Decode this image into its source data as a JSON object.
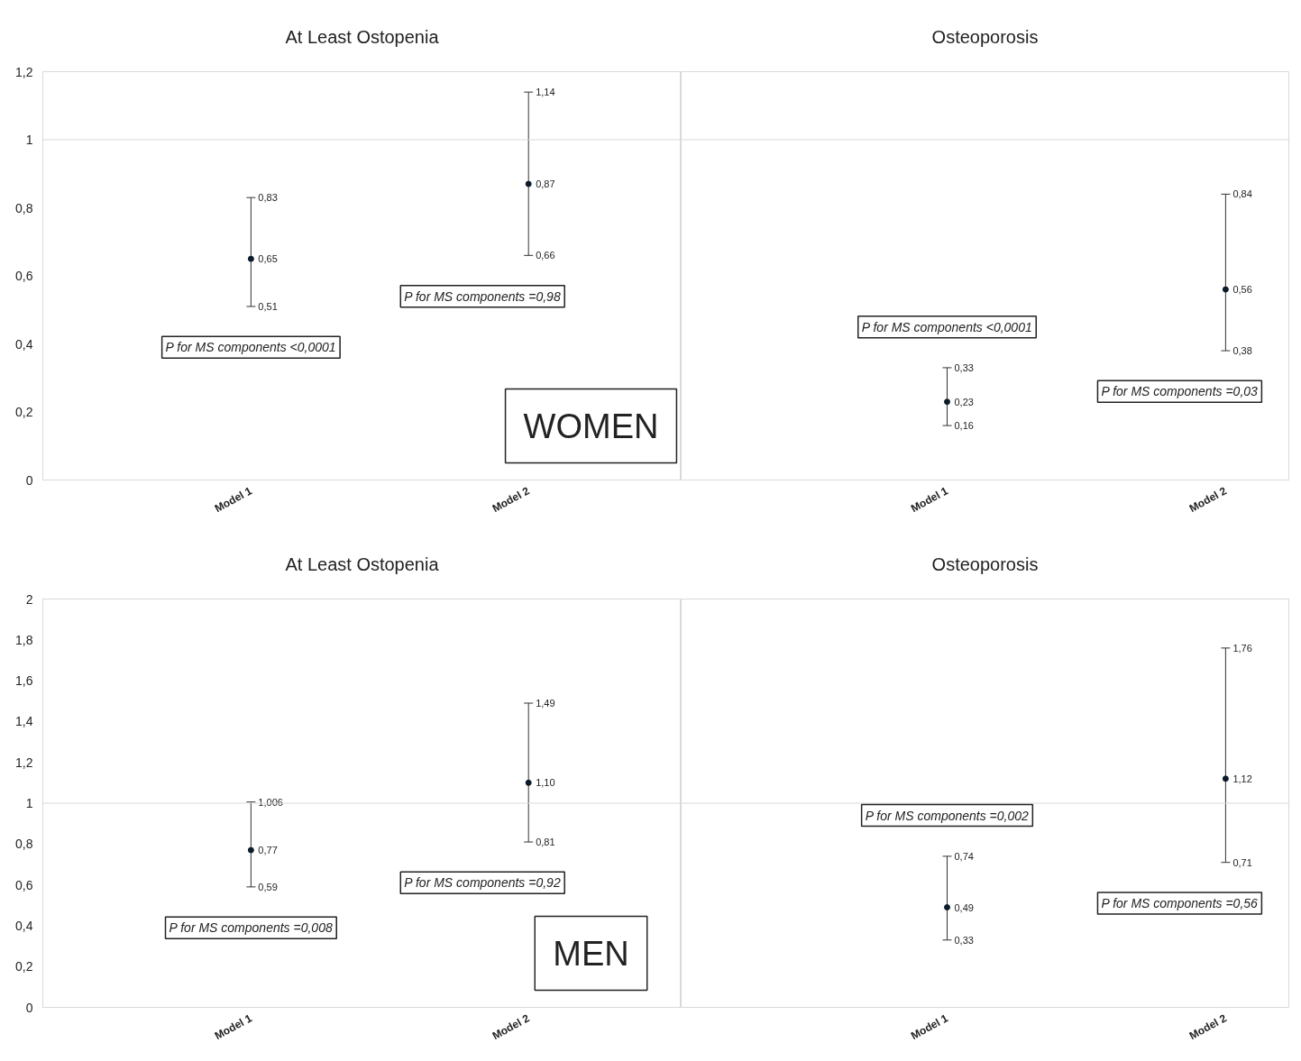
{
  "chart_data": [
    {
      "type": "scatter",
      "marker": "circle",
      "title": "At Least Ostopenia",
      "subtitle": "WOMEN",
      "categories": [
        "Model 1",
        "Model 2"
      ],
      "ylim": [
        0,
        1.2
      ],
      "yticks": [
        {
          "value": 0,
          "label": "0"
        },
        {
          "value": 0.2,
          "label": "0,2"
        },
        {
          "value": 0.4,
          "label": "0,4"
        },
        {
          "value": 0.6,
          "label": "0,6"
        },
        {
          "value": 0.8,
          "label": "0,8"
        },
        {
          "value": 1,
          "label": "1"
        },
        {
          "value": 1.2,
          "label": "1,2"
        }
      ],
      "series": [
        {
          "color": "#0d1b2a",
          "values": [
            0.65,
            0.87
          ],
          "errors": [
            [
              0.51,
              0.83
            ],
            [
              0.66,
              1.14
            ]
          ],
          "value_labels": [
            "0,65",
            "0,87"
          ]
        }
      ],
      "ref_lines": [
        {
          "axis": "y",
          "value": 1,
          "color": "#d9d9d9",
          "line_style": "solid"
        }
      ],
      "annotations": [
        "P for MS components <0,0001",
        "P for MS components =0,98",
        {
          "text": "0,51",
          "x": "Model 1",
          "y": 0.51
        },
        {
          "text": "0,83",
          "x": "Model 1",
          "y": 0.83
        },
        {
          "text": "0,66",
          "x": "Model 2",
          "y": 0.66
        },
        {
          "text": "1,14",
          "x": "Model 2",
          "y": 1.14
        }
      ]
    },
    {
      "type": "scatter",
      "marker": "circle",
      "title": "Osteoporosis",
      "tick_labels": "x",
      "categories": [
        "Model 1",
        "Model 2"
      ],
      "ylim": [
        0,
        1.2
      ],
      "series": [
        {
          "color": "#0d1b2a",
          "values": [
            0.23,
            0.56
          ],
          "errors": [
            [
              0.16,
              0.33
            ],
            [
              0.38,
              0.84
            ]
          ],
          "value_labels": [
            "0,23",
            "0,56"
          ]
        }
      ],
      "ref_lines": [
        {
          "axis": "y",
          "value": 1,
          "color": "#d9d9d9",
          "line_style": "solid"
        }
      ],
      "annotations": [
        "P for MS components <0,0001",
        "P for MS components =0,03",
        {
          "text": "0,16",
          "x": "Model 1",
          "y": 0.16
        },
        {
          "text": "0,33",
          "x": "Model 1",
          "y": 0.33
        },
        {
          "text": "0,38",
          "x": "Model 2",
          "y": 0.38
        },
        {
          "text": "0,84",
          "x": "Model 2",
          "y": 0.84
        }
      ]
    },
    {
      "type": "scatter",
      "marker": "circle",
      "title": "At Least Ostopenia",
      "subtitle": "MEN",
      "categories": [
        "Model 1",
        "Model 2"
      ],
      "ylim": [
        0,
        2
      ],
      "yticks": [
        {
          "value": 0,
          "label": "0"
        },
        {
          "value": 0.2,
          "label": "0,2"
        },
        {
          "value": 0.4,
          "label": "0,4"
        },
        {
          "value": 0.6,
          "label": "0,6"
        },
        {
          "value": 0.8,
          "label": "0,8"
        },
        {
          "value": 1,
          "label": "1"
        },
        {
          "value": 1.2,
          "label": "1,2"
        },
        {
          "value": 1.4,
          "label": "1,4"
        },
        {
          "value": 1.6,
          "label": "1,6"
        },
        {
          "value": 1.8,
          "label": "1,8"
        },
        {
          "value": 2,
          "label": "2"
        }
      ],
      "series": [
        {
          "color": "#0d1b2a",
          "values": [
            0.77,
            1.1
          ],
          "errors": [
            [
              0.59,
              1.006
            ],
            [
              0.81,
              1.49
            ]
          ],
          "value_labels": [
            "0,77",
            "1,10"
          ]
        }
      ],
      "ref_lines": [
        {
          "axis": "y",
          "value": 1,
          "color": "#d9d9d9",
          "line_style": "solid"
        }
      ],
      "annotations": [
        "P for MS components =0,008",
        "P for MS components =0,92",
        {
          "text": "0,59",
          "x": "Model 1",
          "y": 0.59
        },
        {
          "text": "1,006",
          "x": "Model 1",
          "y": 1.006
        },
        {
          "text": "0,81",
          "x": "Model 2",
          "y": 0.81
        },
        {
          "text": "1,49",
          "x": "Model 2",
          "y": 1.49
        }
      ]
    },
    {
      "type": "scatter",
      "marker": "circle",
      "title": "Osteoporosis",
      "tick_labels": "x",
      "categories": [
        "Model 1",
        "Model 2"
      ],
      "ylim": [
        0,
        2
      ],
      "series": [
        {
          "color": "#0d1b2a",
          "values": [
            0.49,
            1.12
          ],
          "errors": [
            [
              0.33,
              0.74
            ],
            [
              0.71,
              1.76
            ]
          ],
          "value_labels": [
            "0,49",
            "1,12"
          ]
        }
      ],
      "ref_lines": [
        {
          "axis": "y",
          "value": 1,
          "color": "#d9d9d9",
          "line_style": "solid"
        }
      ],
      "annotations": [
        "P for MS components =0,002",
        "P for MS components =0,56",
        {
          "text": "0,33",
          "x": "Model 1",
          "y": 0.33
        },
        {
          "text": "0,74",
          "x": "Model 1",
          "y": 0.74
        },
        {
          "text": "0,71",
          "x": "Model 2",
          "y": 0.71
        },
        {
          "text": "1,76",
          "x": "Model 2",
          "y": 1.76
        }
      ]
    }
  ]
}
